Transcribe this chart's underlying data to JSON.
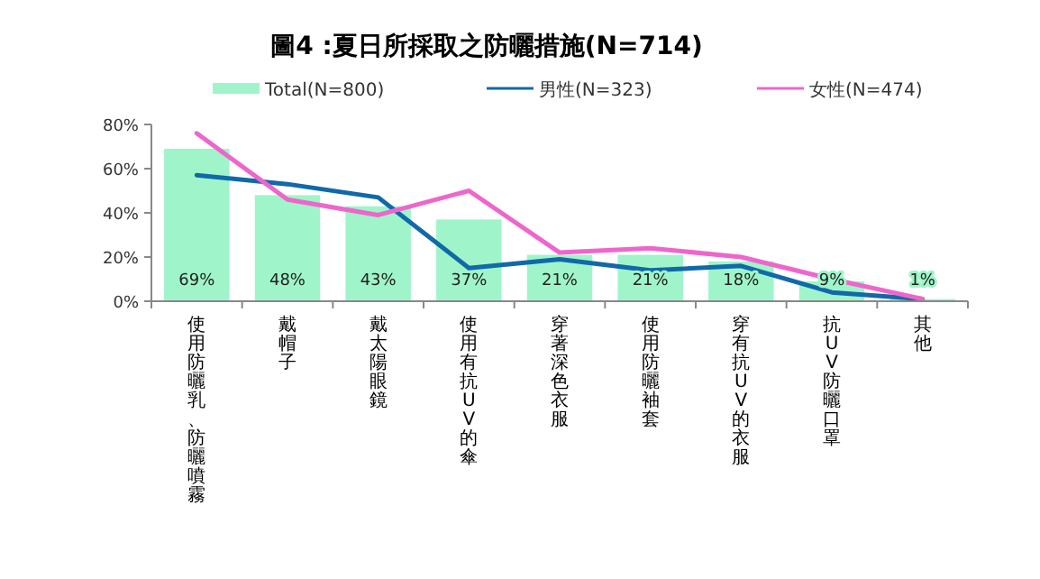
{
  "chart_data": {
    "type": "bar",
    "title": "圖4 :夏日所採取之防曬措施(N=714)",
    "categories": [
      "使用防曬乳、防曬噴霧",
      "戴帽子",
      "戴太陽眼鏡",
      "使用有抗UV的傘",
      "穿著深色衣服",
      "使用防曬袖套",
      "穿有抗UV的衣服",
      "抗UV防曬口罩",
      "其他"
    ],
    "series": [
      {
        "name": "Total(N=800)",
        "color": "#9ff5c9",
        "values": [
          69,
          48,
          43,
          37,
          21,
          21,
          18,
          9,
          1
        ],
        "value_labels": [
          "69%",
          "48%",
          "43%",
          "37%",
          "21%",
          "21%",
          "18%",
          "9%",
          "1%"
        ]
      },
      {
        "name": "男性(N=323)",
        "type": "line",
        "color": "#1069a8",
        "values": [
          57,
          53,
          47,
          15,
          19,
          14,
          16,
          4,
          1
        ]
      },
      {
        "name": "女性(N=474)",
        "type": "line",
        "color": "#ee66cc",
        "values": [
          76,
          46,
          39,
          50,
          22,
          24,
          20,
          10,
          1
        ]
      }
    ],
    "ylim": [
      0,
      80
    ],
    "yticks": [
      {
        "value": 0,
        "label": "0%"
      },
      {
        "value": 20,
        "label": "20%"
      },
      {
        "value": 40,
        "label": "40%"
      },
      {
        "value": 60,
        "label": "60%"
      },
      {
        "value": 80,
        "label": "80%"
      }
    ],
    "legend": "top",
    "grid": false,
    "marker": "none",
    "line_style": "solid"
  }
}
